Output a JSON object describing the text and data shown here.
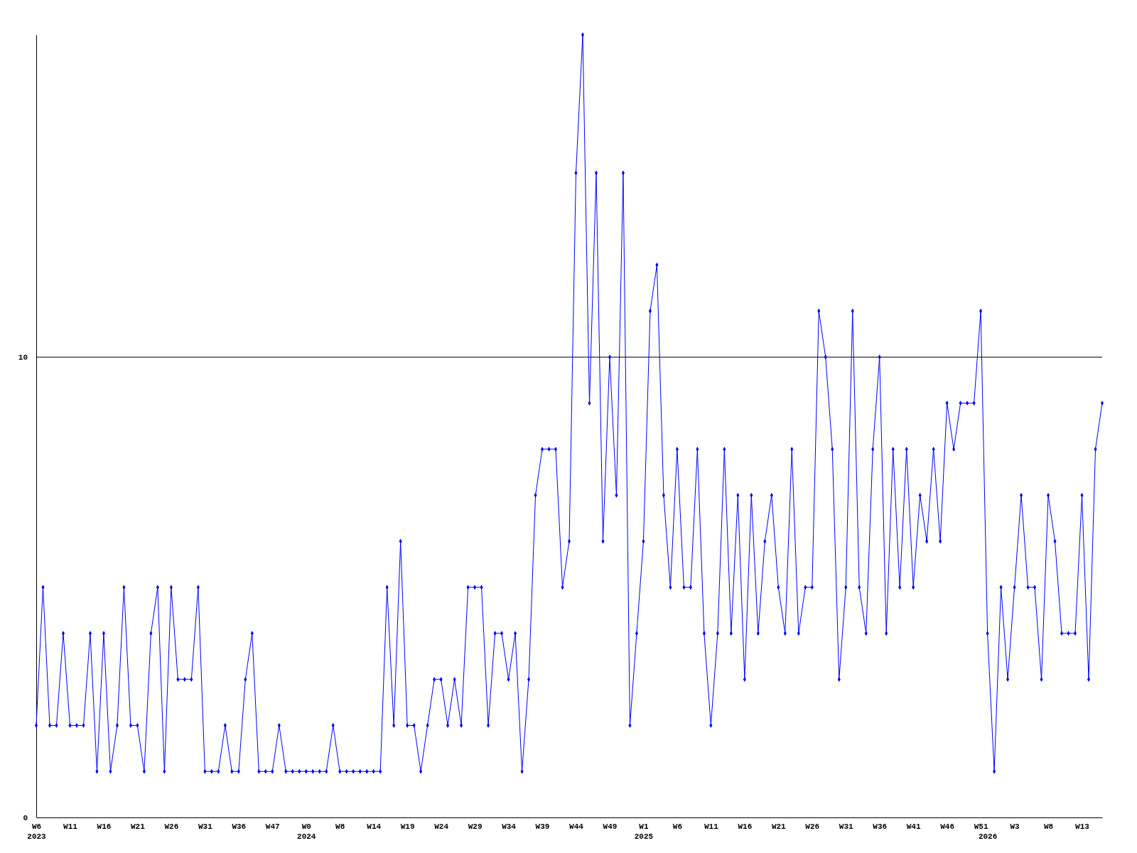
{
  "chart_data": {
    "type": "line",
    "categories": [
      "W6\n2023",
      null,
      null,
      null,
      null,
      "W11",
      null,
      null,
      null,
      null,
      "W16",
      null,
      null,
      null,
      null,
      "W21",
      null,
      null,
      null,
      null,
      "W26",
      null,
      null,
      null,
      null,
      "W31",
      null,
      null,
      null,
      null,
      "W36",
      null,
      null,
      null,
      null,
      "W47",
      null,
      null,
      null,
      null,
      "W0\n2024",
      null,
      null,
      null,
      null,
      "W8",
      null,
      null,
      null,
      null,
      "W14",
      null,
      null,
      null,
      null,
      "W19",
      null,
      null,
      null,
      null,
      "W24",
      null,
      null,
      null,
      null,
      "W29",
      null,
      null,
      null,
      null,
      "W34",
      null,
      null,
      null,
      null,
      "W39",
      null,
      null,
      null,
      null,
      "W44",
      null,
      null,
      null,
      null,
      "W49",
      null,
      null,
      null,
      null,
      "W1\n2025",
      null,
      null,
      null,
      null,
      "W6",
      null,
      null,
      null,
      null,
      "W11",
      null,
      null,
      null,
      null,
      "W16",
      null,
      null,
      null,
      null,
      "W21",
      null,
      null,
      null,
      null,
      "W26",
      null,
      null,
      null,
      null,
      "W31",
      null,
      null,
      null,
      null,
      "W36",
      null,
      null,
      null,
      null,
      "W41",
      null,
      null,
      null,
      null,
      "W46",
      null,
      null,
      null,
      null,
      "W51",
      "\n2026",
      null,
      null,
      null,
      "W3",
      null,
      null,
      null,
      null,
      "W8",
      null,
      null,
      null,
      null,
      "W13",
      null,
      null,
      null
    ],
    "series": [
      {
        "color": "#0000ff",
        "values": [
          2,
          5,
          2,
          2,
          4,
          2,
          2,
          2,
          4,
          1,
          4,
          1,
          2,
          5,
          2,
          2,
          1,
          4,
          5,
          1,
          5,
          3,
          3,
          3,
          5,
          1,
          1,
          1,
          2,
          1,
          1,
          3,
          4,
          1,
          1,
          1,
          2,
          1,
          1,
          1,
          1,
          1,
          1,
          1,
          2,
          1,
          1,
          1,
          1,
          1,
          1,
          1,
          5,
          2,
          6,
          2,
          2,
          1,
          2,
          3,
          3,
          2,
          3,
          2,
          5,
          5,
          5,
          2,
          4,
          4,
          3,
          4,
          1,
          3,
          7,
          8,
          8,
          8,
          5,
          6,
          14,
          17,
          9,
          14,
          6,
          10,
          7,
          14,
          2,
          4,
          6,
          11,
          12,
          7,
          5,
          8,
          5,
          5,
          8,
          4,
          2,
          4,
          8,
          4,
          7,
          3,
          7,
          4,
          6,
          7,
          5,
          4,
          8,
          4,
          5,
          5,
          11,
          10,
          8,
          3,
          5,
          11,
          5,
          4,
          8,
          10,
          4,
          8,
          5,
          8,
          5,
          7,
          6,
          8,
          6,
          9,
          8,
          9,
          9,
          9,
          11,
          4,
          1,
          5,
          3,
          5,
          7,
          5,
          5,
          3,
          7,
          6,
          4,
          4,
          4,
          7,
          3,
          8,
          9
        ]
      }
    ],
    "ylim": [
      0,
      17
    ],
    "yticks": [
      0,
      10
    ],
    "grid": "y",
    "marker": "diamond",
    "line_style": "solid"
  }
}
